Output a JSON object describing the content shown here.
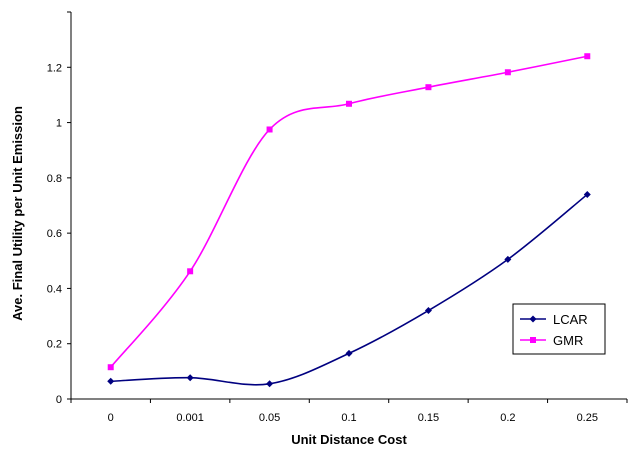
{
  "chart_data": {
    "type": "line",
    "title": "",
    "xlabel": "Unit Distance Cost",
    "ylabel": "Ave. Final Utility per Unit Emission",
    "categories": [
      "0",
      "0.001",
      "0.05",
      "0.1",
      "0.15",
      "0.2",
      "0.25"
    ],
    "ylim": [
      0,
      1.4
    ],
    "yticks": [
      "0",
      "0.2",
      "0.4",
      "0.6",
      "0.8",
      "1",
      "1.2"
    ],
    "grid": false,
    "legend_position": "lower-right",
    "series": [
      {
        "name": "LCAR",
        "color": "#000080",
        "marker": "diamond",
        "values": [
          0.064,
          0.077,
          0.055,
          0.165,
          0.32,
          0.505,
          0.74
        ]
      },
      {
        "name": "GMR",
        "color": "#ff00ff",
        "marker": "square",
        "values": [
          0.115,
          0.462,
          0.975,
          1.068,
          1.128,
          1.182,
          1.24
        ]
      }
    ]
  }
}
